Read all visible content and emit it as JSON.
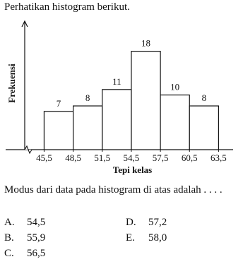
{
  "intro": "Perhatikan histogram berikut.",
  "chart_data": {
    "type": "histogram",
    "ylabel": "Frekuensi",
    "xlabel": "Tepi kelas",
    "bins": [
      45.5,
      48.5,
      51.5,
      54.5,
      57.5,
      60.5,
      63.5
    ],
    "values": [
      7,
      8,
      11,
      18,
      10,
      8
    ],
    "color": "#ffffff",
    "xlim": [
      43.5,
      65
    ],
    "ylim": [
      0,
      23.5
    ],
    "xticks": [
      {
        "value": 45.5,
        "label": "45,5"
      },
      {
        "value": 48.5,
        "label": "48,5"
      },
      {
        "value": 51.5,
        "label": "51,5"
      },
      {
        "value": 54.5,
        "label": "54,5"
      },
      {
        "value": 57.5,
        "label": "57,5"
      },
      {
        "value": 60.5,
        "label": "60,5"
      },
      {
        "value": 63.5,
        "label": "63,5"
      }
    ],
    "grid": false
  },
  "question": "Modus dari data pada histogram di atas adalah . . . .",
  "options": [
    {
      "letter": "A.",
      "text": "54,5"
    },
    {
      "letter": "B.",
      "text": "55,9"
    },
    {
      "letter": "C.",
      "text": "56,5"
    },
    {
      "letter": "D.",
      "text": "57,2"
    },
    {
      "letter": "E.",
      "text": "58,0"
    }
  ]
}
